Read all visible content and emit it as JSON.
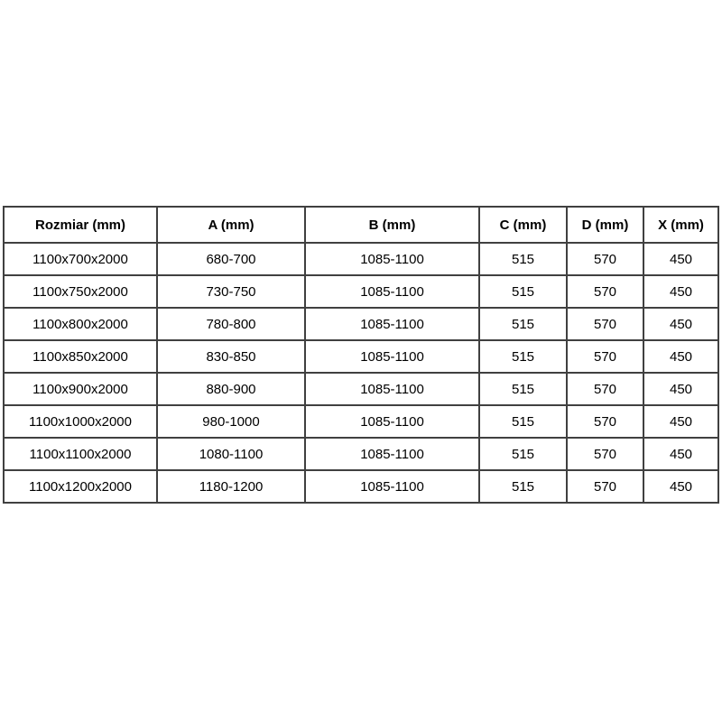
{
  "page": {
    "background_color": "#ffffff"
  },
  "table": {
    "border_color": "#404040",
    "text_color": "#000000",
    "columns": [
      "Rozmiar (mm)",
      "A (mm)",
      "B (mm)",
      "C (mm)",
      "D (mm)",
      "X (mm)"
    ],
    "rows": [
      [
        "1100x700x2000",
        "680-700",
        "1085-1100",
        "515",
        "570",
        "450"
      ],
      [
        "1100x750x2000",
        "730-750",
        "1085-1100",
        "515",
        "570",
        "450"
      ],
      [
        "1100x800x2000",
        "780-800",
        "1085-1100",
        "515",
        "570",
        "450"
      ],
      [
        "1100x850x2000",
        "830-850",
        "1085-1100",
        "515",
        "570",
        "450"
      ],
      [
        "1100x900x2000",
        "880-900",
        "1085-1100",
        "515",
        "570",
        "450"
      ],
      [
        "1100x1000x2000",
        "980-1000",
        "1085-1100",
        "515",
        "570",
        "450"
      ],
      [
        "1100x1100x2000",
        "1080-1100",
        "1085-1100",
        "515",
        "570",
        "450"
      ],
      [
        "1100x1200x2000",
        "1180-1200",
        "1085-1100",
        "515",
        "570",
        "450"
      ]
    ]
  }
}
